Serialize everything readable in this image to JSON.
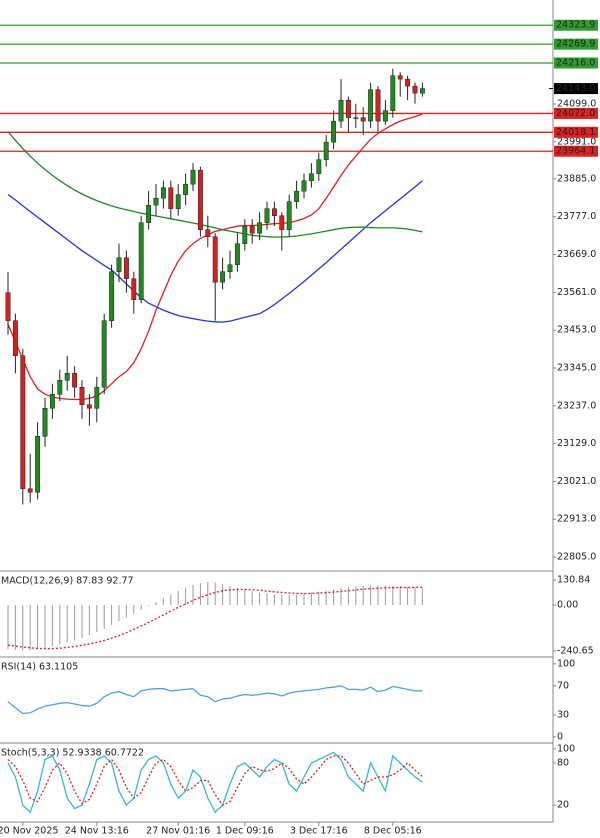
{
  "chart_data": [
    {
      "type": "candlestick",
      "categories": [
        null,
        null,
        "20 Nov 2025",
        null,
        null,
        null,
        null,
        null,
        null,
        null,
        null,
        null,
        "24 Nov 13:16",
        null,
        null,
        null,
        null,
        null,
        null,
        null,
        null,
        null,
        null,
        "27 Nov 01:16",
        null,
        null,
        null,
        null,
        null,
        null,
        null,
        null,
        "1 Dec 09:16",
        null,
        null,
        null,
        null,
        null,
        null,
        null,
        null,
        null,
        "3 Dec 17:16",
        null,
        null,
        null,
        null,
        null,
        null,
        null,
        null,
        null,
        "8 Dec 05:16",
        null,
        null,
        null,
        null
      ],
      "open": [
        23560,
        23480,
        23380,
        23000,
        22990,
        23150,
        23230,
        23270,
        23310,
        23330,
        23290,
        23240,
        23230,
        23290,
        23480,
        23620,
        23660,
        23600,
        23540,
        23760,
        23810,
        23830,
        23860,
        23800,
        23840,
        23870,
        23910,
        23740,
        23720,
        23590,
        23620,
        23640,
        23700,
        23750,
        23730,
        23760,
        23800,
        23780,
        23740,
        23820,
        23850,
        23880,
        23900,
        23940,
        23990,
        24050,
        24110,
        24060,
        24060,
        24050,
        24140,
        24050,
        24080,
        24180,
        24170,
        24150,
        24130
      ],
      "high": [
        23620,
        23500,
        23400,
        23100,
        23190,
        23260,
        23300,
        23340,
        23380,
        23350,
        23310,
        23270,
        23320,
        23500,
        23640,
        23700,
        23680,
        23620,
        23780,
        23850,
        23870,
        23880,
        23880,
        23870,
        23900,
        23930,
        23920,
        23780,
        23730,
        23660,
        23680,
        23730,
        23770,
        23770,
        23790,
        23820,
        23820,
        23790,
        23840,
        23880,
        23900,
        23930,
        23960,
        24010,
        24080,
        24170,
        24120,
        24100,
        24090,
        24160,
        24150,
        24110,
        24200,
        24190,
        24180,
        24160,
        24160
      ],
      "low": [
        23440,
        23330,
        22955,
        22960,
        22970,
        23120,
        23200,
        23250,
        23280,
        23260,
        23200,
        23180,
        23190,
        23270,
        23460,
        23590,
        23560,
        23500,
        23530,
        23740,
        23780,
        23800,
        23770,
        23780,
        23810,
        23850,
        23720,
        23690,
        23480,
        23570,
        23600,
        23620,
        23680,
        23700,
        23710,
        23740,
        23750,
        23680,
        23720,
        23800,
        23830,
        23860,
        23880,
        23920,
        23970,
        24030,
        24020,
        24030,
        24010,
        24030,
        24020,
        24040,
        24060,
        24120,
        24110,
        24100,
        24120
      ],
      "close": [
        23480,
        23380,
        23000,
        22990,
        23150,
        23230,
        23270,
        23310,
        23330,
        23290,
        23240,
        23230,
        23290,
        23480,
        23620,
        23660,
        23600,
        23540,
        23760,
        23810,
        23830,
        23860,
        23800,
        23840,
        23870,
        23910,
        23740,
        23720,
        23590,
        23620,
        23640,
        23700,
        23750,
        23730,
        23760,
        23800,
        23780,
        23740,
        23820,
        23850,
        23880,
        23900,
        23940,
        23990,
        24050,
        24110,
        24060,
        24060,
        24050,
        24140,
        24050,
        24080,
        24180,
        24170,
        24150,
        24130,
        24143
      ],
      "up_color": "#1f8a1f",
      "down_color": "#d42020",
      "ylim": [
        22768,
        24396
      ],
      "yticks": [
        {
          "value": 22805,
          "label": "22805.0"
        },
        {
          "value": 22913,
          "label": "22913.0"
        },
        {
          "value": 23021,
          "label": "23021.0"
        },
        {
          "value": 23129,
          "label": "23129.0"
        },
        {
          "value": 23237,
          "label": "23237.0"
        },
        {
          "value": 23345,
          "label": "23345.0"
        },
        {
          "value": 23453,
          "label": "23453.0"
        },
        {
          "value": 23561,
          "label": "23561.0"
        },
        {
          "value": 23669,
          "label": "23669.0"
        },
        {
          "value": 23777,
          "label": "23777.0"
        },
        {
          "value": 23885,
          "label": "23885.0"
        },
        {
          "value": 23991,
          "label": "23991.0"
        },
        {
          "value": 24099,
          "label": "24099.0"
        }
      ],
      "lines": [
        {
          "color": "#2233dd",
          "values": [
            23840,
            23825,
            23808,
            23792,
            23776,
            23760,
            23744,
            23728,
            23712,
            23696,
            23680,
            23666,
            23652,
            23638,
            23625,
            23605,
            23585,
            23565,
            23546,
            23530,
            23520,
            23510,
            23502,
            23495,
            23490,
            23486,
            23482,
            23479,
            23477,
            23476,
            23479,
            23484,
            23490,
            23495,
            23500,
            23512,
            23526,
            23542,
            23558,
            23575,
            23592,
            23610,
            23628,
            23646,
            23665,
            23684,
            23703,
            23722,
            23741,
            23760,
            23777,
            23794,
            23811,
            23828,
            23845,
            23862,
            23880
          ]
        },
        {
          "color": "#e02020",
          "values": [
            23470,
            23420,
            23370,
            23320,
            23285,
            23270,
            23262,
            23258,
            23256,
            23255,
            23255,
            23258,
            23265,
            23280,
            23300,
            23320,
            23335,
            23360,
            23400,
            23450,
            23510,
            23560,
            23610,
            23650,
            23680,
            23700,
            23715,
            23725,
            23735,
            23740,
            23745,
            23750,
            23752,
            23752,
            23753,
            23755,
            23757,
            23758,
            23760,
            23765,
            23772,
            23782,
            23800,
            23830,
            23862,
            23895,
            23925,
            23950,
            23975,
            23998,
            24015,
            24028,
            24040,
            24050,
            24057,
            24063,
            24070
          ]
        },
        {
          "color": "#1f8a1f",
          "values": [
            24020,
            23995,
            23972,
            23950,
            23930,
            23912,
            23895,
            23880,
            23866,
            23853,
            23842,
            23832,
            23823,
            23815,
            23808,
            23802,
            23797,
            23792,
            23787,
            23783,
            23779,
            23775,
            23771,
            23767,
            23763,
            23759,
            23755,
            23750,
            23745,
            23740,
            23736,
            23732,
            23728,
            23724,
            23722,
            23720,
            23719,
            23719,
            23720,
            23722,
            23725,
            23728,
            23732,
            23736,
            23740,
            23744,
            23746,
            23747,
            23747,
            23746,
            23745,
            23745,
            23745,
            23744,
            23742,
            23738,
            23734
          ]
        }
      ],
      "levels": [
        {
          "value": 24323.9,
          "color": "#2e9e2e"
        },
        {
          "value": 24269.9,
          "color": "#2e9e2e"
        },
        {
          "value": 24216,
          "label": "24216.0",
          "color": "#2e9e2e"
        },
        {
          "value": 24072,
          "label": "24072.0",
          "color": "#e02020"
        },
        {
          "value": 24018.1,
          "color": "#e02020"
        },
        {
          "value": 23964.1,
          "color": "#e02020"
        }
      ],
      "last": {
        "value": 24143,
        "label": "24143.0"
      }
    },
    {
      "type": "oscillator",
      "title": "MACD(12,26,9) 87.83 92.77",
      "ylim": [
        -267,
        173
      ],
      "yticks": [
        130.84,
        {
          "value": 0,
          "label": "0.00"
        },
        -240.65
      ],
      "series": [
        {
          "kind": "bar",
          "color": "#9a9a9a",
          "values": [
            -230,
            -235,
            -240,
            -238,
            -232,
            -225,
            -215,
            -205,
            -195,
            -185,
            -172,
            -158,
            -142,
            -125,
            -105,
            -85,
            -65,
            -45,
            -25,
            -5,
            15,
            35,
            55,
            75,
            90,
            105,
            115,
            120,
            118,
            110,
            100,
            90,
            80,
            72,
            65,
            60,
            55,
            52,
            52,
            55,
            60,
            65,
            70,
            75,
            82,
            90,
            95,
            98,
            100,
            102,
            103,
            102,
            100,
            98,
            95,
            92,
            87.83
          ]
        },
        {
          "kind": "line",
          "dash": true,
          "color": "#e02020",
          "values": [
            -210,
            -215,
            -220,
            -224,
            -227,
            -228,
            -228,
            -226,
            -222,
            -217,
            -211,
            -204,
            -196,
            -186,
            -174,
            -160,
            -145,
            -128,
            -110,
            -91,
            -72,
            -52,
            -32,
            -12,
            6,
            24,
            40,
            54,
            66,
            75,
            80,
            82,
            82,
            80,
            77,
            73,
            69,
            66,
            63,
            61,
            60,
            61,
            63,
            65,
            68,
            71,
            75,
            79,
            83,
            86,
            88,
            90,
            91,
            92,
            92,
            92.5,
            92.77
          ]
        }
      ]
    },
    {
      "type": "oscillator",
      "title": "RSI(14) 63.1105",
      "ylim": [
        -7,
        108
      ],
      "yticks": [
        100,
        70,
        30,
        0
      ],
      "series": [
        {
          "kind": "line",
          "color": "#4aa3df",
          "values": [
            48,
            40,
            32,
            33,
            38,
            42,
            44,
            46,
            47,
            45,
            43,
            42,
            46,
            55,
            60,
            62,
            58,
            55,
            63,
            65,
            66,
            66,
            63,
            64,
            65,
            66,
            57,
            55,
            48,
            52,
            53,
            56,
            58,
            57,
            58,
            60,
            59,
            56,
            60,
            62,
            63,
            64,
            65,
            67,
            68,
            70,
            65,
            65,
            64,
            68,
            62,
            64,
            69,
            67,
            65,
            63,
            63.1105
          ]
        }
      ]
    },
    {
      "type": "oscillator",
      "title": "Stoch(5,3,3) 52.9338 60.7722",
      "ylim": [
        -4,
        107
      ],
      "yticks": [
        100,
        80,
        20
      ],
      "series": [
        {
          "kind": "line",
          "color": "#39b6d6",
          "values": [
            80,
            60,
            20,
            10,
            40,
            85,
            90,
            70,
            30,
            15,
            20,
            50,
            85,
            90,
            80,
            40,
            20,
            30,
            70,
            85,
            90,
            80,
            50,
            30,
            40,
            70,
            60,
            30,
            10,
            20,
            50,
            75,
            80,
            70,
            60,
            75,
            85,
            80,
            50,
            40,
            60,
            80,
            85,
            90,
            95,
            85,
            60,
            50,
            40,
            80,
            60,
            40,
            90,
            80,
            70,
            60,
            52.9338
          ]
        },
        {
          "kind": "line",
          "dash": true,
          "color": "#e02020",
          "values": [
            85,
            75,
            55,
            30,
            25,
            45,
            70,
            80,
            65,
            40,
            22,
            28,
            50,
            75,
            85,
            70,
            45,
            30,
            38,
            60,
            80,
            85,
            75,
            55,
            40,
            45,
            55,
            55,
            35,
            20,
            25,
            45,
            65,
            75,
            70,
            68,
            72,
            80,
            72,
            57,
            50,
            60,
            72,
            85,
            90,
            90,
            80,
            65,
            50,
            55,
            60,
            60,
            63,
            70,
            80,
            70,
            60.7722
          ]
        }
      ]
    }
  ]
}
